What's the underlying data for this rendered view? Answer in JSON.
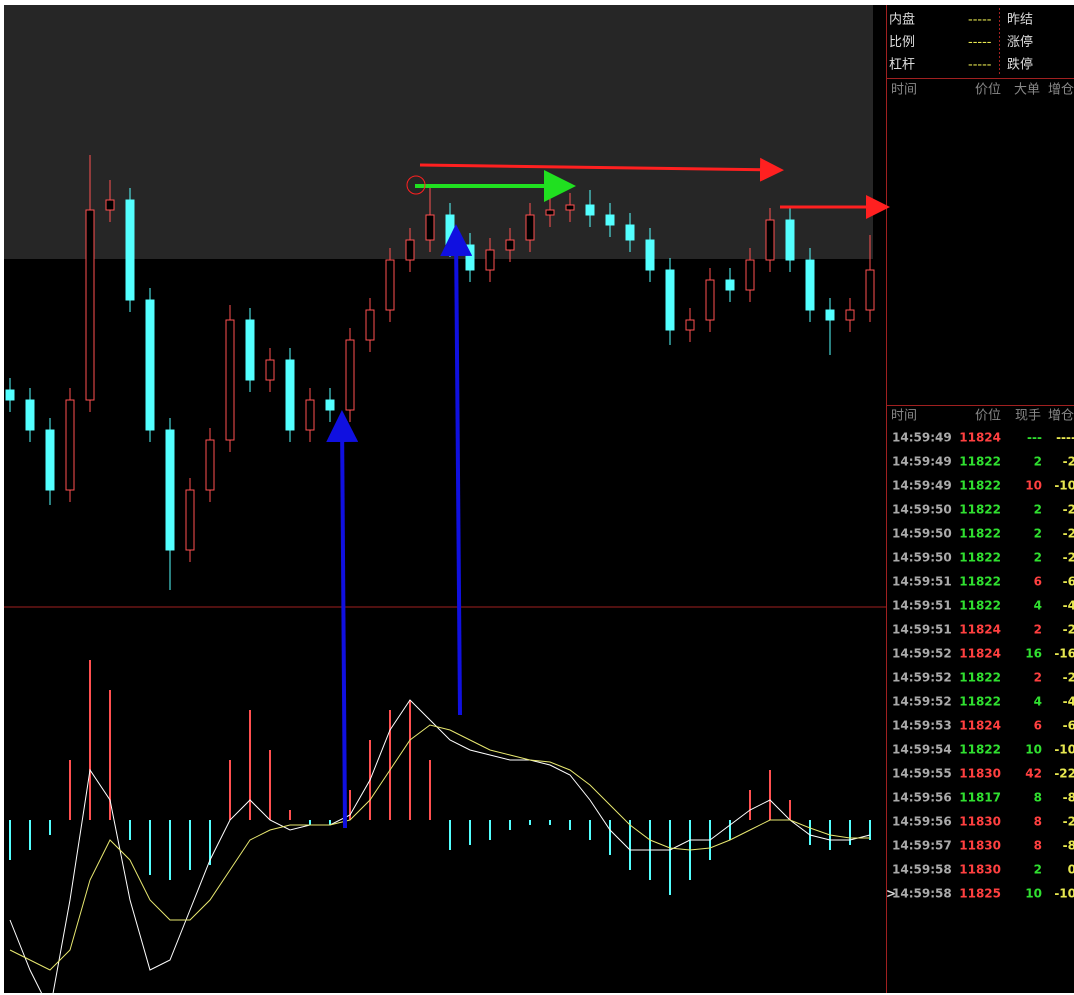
{
  "chart_data": {
    "type": "candlestick",
    "ylim": [
      -5,
      595
    ],
    "up_color": "#ff5050",
    "down_color": "#54ffff",
    "open": [
      210,
      200,
      170,
      110,
      200,
      390,
      400,
      300,
      170,
      50,
      110,
      160,
      280,
      220,
      240,
      170,
      200,
      190,
      260,
      290,
      340,
      360,
      385,
      355,
      330,
      350,
      360,
      385,
      390,
      395,
      385,
      375,
      360,
      330,
      270,
      280,
      320,
      310,
      340,
      380,
      340,
      290,
      280,
      290
    ],
    "high": [
      222,
      212,
      182,
      212,
      445,
      420,
      412,
      312,
      182,
      122,
      172,
      295,
      292,
      252,
      252,
      212,
      212,
      272,
      302,
      352,
      372,
      412,
      397,
      367,
      362,
      372,
      397,
      402,
      407,
      410,
      397,
      387,
      372,
      342,
      292,
      332,
      332,
      352,
      392,
      392,
      352,
      302,
      302,
      365
    ],
    "low": [
      188,
      158,
      95,
      98,
      188,
      378,
      288,
      158,
      10,
      38,
      98,
      148,
      208,
      208,
      158,
      158,
      178,
      178,
      248,
      278,
      328,
      348,
      343,
      318,
      318,
      338,
      348,
      373,
      378,
      373,
      363,
      348,
      318,
      255,
      258,
      268,
      298,
      298,
      328,
      328,
      278,
      245,
      268,
      278
    ],
    "close": [
      200,
      170,
      110,
      200,
      390,
      400,
      300,
      170,
      50,
      110,
      160,
      280,
      220,
      240,
      170,
      200,
      190,
      260,
      290,
      340,
      360,
      385,
      355,
      330,
      350,
      360,
      385,
      390,
      395,
      385,
      375,
      360,
      330,
      270,
      280,
      320,
      310,
      340,
      380,
      340,
      290,
      280,
      290,
      330
    ],
    "macd": {
      "ylim": [
        -170,
        213
      ],
      "hist_up_color": "#ff5050",
      "hist_down_color": "#54ffff",
      "hist": [
        -40,
        -30,
        -15,
        60,
        160,
        130,
        -20,
        -55,
        -60,
        -50,
        -45,
        60,
        110,
        70,
        10,
        -5,
        -5,
        30,
        80,
        110,
        120,
        60,
        -30,
        -25,
        -20,
        -10,
        -5,
        -5,
        -10,
        -20,
        -35,
        -50,
        -60,
        -75,
        -60,
        -40,
        -20,
        30,
        50,
        20,
        -25,
        -30,
        -25,
        -20
      ],
      "series": [
        {
          "color": "#ffffff",
          "values": [
            -100,
            -150,
            -190,
            -80,
            50,
            20,
            -80,
            -150,
            -140,
            -90,
            -40,
            0,
            20,
            0,
            -10,
            -5,
            -5,
            5,
            40,
            90,
            120,
            100,
            80,
            70,
            65,
            60,
            60,
            55,
            45,
            20,
            -10,
            -30,
            -30,
            -30,
            -20,
            -20,
            -5,
            10,
            20,
            0,
            -15,
            -20,
            -20,
            -15
          ]
        },
        {
          "color": "#e8e870",
          "values": [
            -130,
            -140,
            -150,
            -130,
            -60,
            -20,
            -40,
            -80,
            -100,
            -100,
            -80,
            -50,
            -20,
            -10,
            -5,
            -5,
            -5,
            0,
            20,
            50,
            80,
            95,
            90,
            80,
            70,
            65,
            60,
            58,
            50,
            35,
            15,
            -5,
            -20,
            -28,
            -30,
            -28,
            -20,
            -10,
            0,
            0,
            -8,
            -15,
            -18,
            -18
          ]
        }
      ]
    }
  },
  "info": [
    [
      "内盘",
      "-----",
      "昨结"
    ],
    [
      "比例",
      "-----",
      "涨停"
    ],
    [
      "杠杆",
      "-----",
      "跌停"
    ]
  ],
  "big_header": [
    "时间",
    "价位",
    "大单",
    "增仓"
  ],
  "trade_header": [
    "时间",
    "价位",
    "现手",
    "增仓"
  ],
  "cursor": ">",
  "trades": [
    {
      "time": "14:59:49",
      "price": "11824",
      "price_color": "#ff4040",
      "vol": "---",
      "vol_color": "#30e030",
      "chg": "----"
    },
    {
      "time": "14:59:49",
      "price": "11822",
      "price_color": "#30e030",
      "vol": "2",
      "vol_color": "#30e030",
      "chg": "-2"
    },
    {
      "time": "14:59:49",
      "price": "11822",
      "price_color": "#30e030",
      "vol": "10",
      "vol_color": "#ff4040",
      "chg": "-10"
    },
    {
      "time": "14:59:50",
      "price": "11822",
      "price_color": "#30e030",
      "vol": "2",
      "vol_color": "#30e030",
      "chg": "-2"
    },
    {
      "time": "14:59:50",
      "price": "11822",
      "price_color": "#30e030",
      "vol": "2",
      "vol_color": "#30e030",
      "chg": "-2"
    },
    {
      "time": "14:59:50",
      "price": "11822",
      "price_color": "#30e030",
      "vol": "2",
      "vol_color": "#30e030",
      "chg": "-2"
    },
    {
      "time": "14:59:51",
      "price": "11822",
      "price_color": "#30e030",
      "vol": "6",
      "vol_color": "#ff4040",
      "chg": "-6"
    },
    {
      "time": "14:59:51",
      "price": "11822",
      "price_color": "#30e030",
      "vol": "4",
      "vol_color": "#30e030",
      "chg": "-4"
    },
    {
      "time": "14:59:51",
      "price": "11824",
      "price_color": "#ff4040",
      "vol": "2",
      "vol_color": "#ff4040",
      "chg": "-2"
    },
    {
      "time": "14:59:52",
      "price": "11824",
      "price_color": "#ff4040",
      "vol": "16",
      "vol_color": "#30e030",
      "chg": "-16"
    },
    {
      "time": "14:59:52",
      "price": "11822",
      "price_color": "#30e030",
      "vol": "2",
      "vol_color": "#ff4040",
      "chg": "-2"
    },
    {
      "time": "14:59:52",
      "price": "11822",
      "price_color": "#30e030",
      "vol": "4",
      "vol_color": "#30e030",
      "chg": "-4"
    },
    {
      "time": "14:59:53",
      "price": "11824",
      "price_color": "#ff4040",
      "vol": "6",
      "vol_color": "#ff4040",
      "chg": "-6"
    },
    {
      "time": "14:59:54",
      "price": "11822",
      "price_color": "#30e030",
      "vol": "10",
      "vol_color": "#30e030",
      "chg": "-10"
    },
    {
      "time": "14:59:55",
      "price": "11830",
      "price_color": "#ff4040",
      "vol": "42",
      "vol_color": "#ff4040",
      "chg": "-22"
    },
    {
      "time": "14:59:56",
      "price": "11817",
      "price_color": "#30e030",
      "vol": "8",
      "vol_color": "#30e030",
      "chg": "-8"
    },
    {
      "time": "14:59:56",
      "price": "11830",
      "price_color": "#ff4040",
      "vol": "8",
      "vol_color": "#ff4040",
      "chg": "-2"
    },
    {
      "time": "14:59:57",
      "price": "11830",
      "price_color": "#ff4040",
      "vol": "8",
      "vol_color": "#ff4040",
      "chg": "-8"
    },
    {
      "time": "14:59:58",
      "price": "11830",
      "price_color": "#ff4040",
      "vol": "2",
      "vol_color": "#30e030",
      "chg": "0"
    },
    {
      "time": "14:59:58",
      "price": "11825",
      "price_color": "#ff4040",
      "vol": "10",
      "vol_color": "#30e030",
      "chg": "-10"
    }
  ]
}
